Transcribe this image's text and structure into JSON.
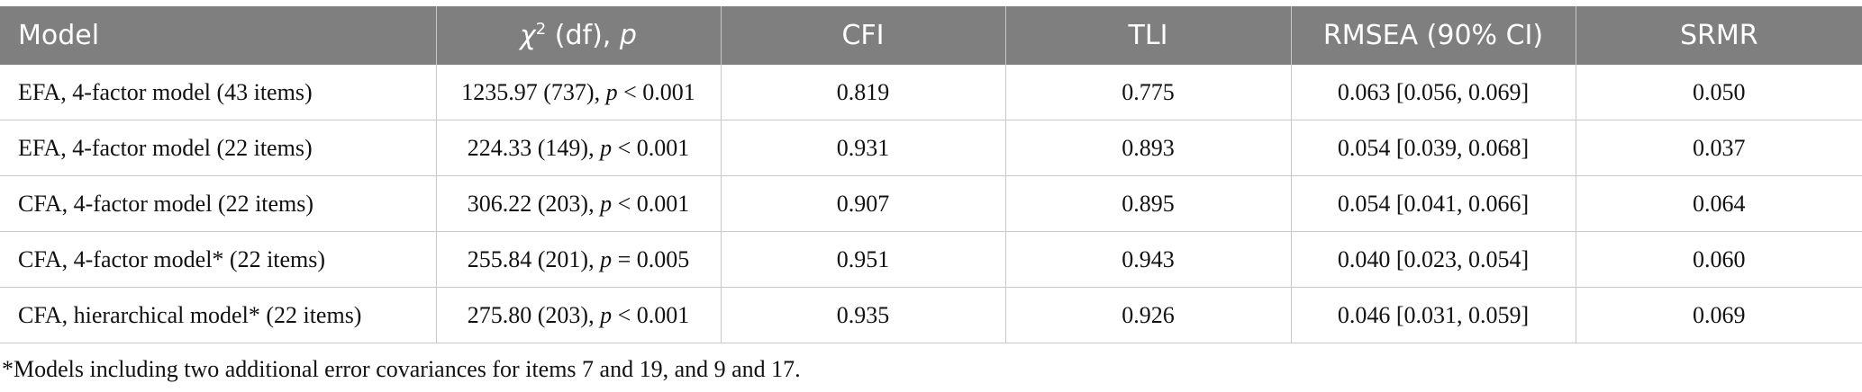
{
  "table": {
    "header": [
      "Model",
      {
        "symbol": "χ",
        "superscript": "2",
        "text": "(df),",
        "p": "p"
      },
      "CFI",
      "TLI",
      "RMSEA (90% CI)",
      "SRMR"
    ],
    "rows": [
      [
        "EFA, 4-factor model (43 items)",
        {
          "chi": "1235.97 (737),",
          "p": "p",
          "p_value": "< 0.001"
        },
        "0.819",
        "0.775",
        "0.063 [0.056, 0.069]",
        "0.050"
      ],
      [
        "EFA, 4-factor model (22 items)",
        {
          "chi": "224.33 (149),",
          "p": "p",
          "p_value": "< 0.001"
        },
        "0.931",
        "0.893",
        "0.054 [0.039, 0.068]",
        "0.037"
      ],
      [
        "CFA, 4-factor model (22 items)",
        {
          "chi": "306.22 (203),",
          "p": "p",
          "p_value": "< 0.001"
        },
        "0.907",
        "0.895",
        "0.054 [0.041, 0.066]",
        "0.064"
      ],
      [
        "CFA, 4-factor model* (22 items)",
        {
          "chi": "255.84 (201),",
          "p": "p",
          "p_value": "= 0.005"
        },
        "0.951",
        "0.943",
        "0.040 [0.023, 0.054]",
        "0.060"
      ],
      [
        "CFA, hierarchical model* (22 items)",
        {
          "chi": "275.80 (203),",
          "p": "p",
          "p_value": "< 0.001"
        },
        "0.935",
        "0.926",
        "0.046 [0.031, 0.059]",
        "0.069"
      ]
    ],
    "footnote": "*Models including two additional error covariances for items 7 and 19, and 9 and 17."
  }
}
